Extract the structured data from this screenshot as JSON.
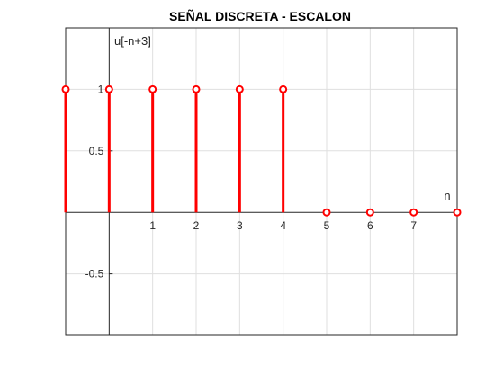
{
  "chart_data": {
    "type": "stem",
    "title": "SEÑAL DISCRETA - ESCALON",
    "xlabel": "n",
    "ylabel": "u[-n+3]",
    "xlim": [
      -1,
      8
    ],
    "ylim": [
      -1,
      1.5
    ],
    "x": [
      -1,
      0,
      1,
      2,
      3,
      4,
      5,
      6,
      7,
      8
    ],
    "series": [
      {
        "values": [
          1,
          1,
          1,
          1,
          1,
          1,
          0,
          0,
          0,
          0
        ],
        "color": "#ff0000"
      }
    ],
    "xticks": [
      1,
      2,
      3,
      4,
      5,
      6,
      7
    ],
    "xtick_labels": [
      "1",
      "2",
      "3",
      "4",
      "5",
      "6",
      "7"
    ],
    "yticks": [
      -0.5,
      0.5,
      1
    ],
    "ytick_labels": [
      "-0.5",
      "0.5",
      "1"
    ],
    "grid": true,
    "colors": {
      "grid": "#dfdfdf",
      "frame": "#262626",
      "stem": "#ff0000"
    }
  }
}
